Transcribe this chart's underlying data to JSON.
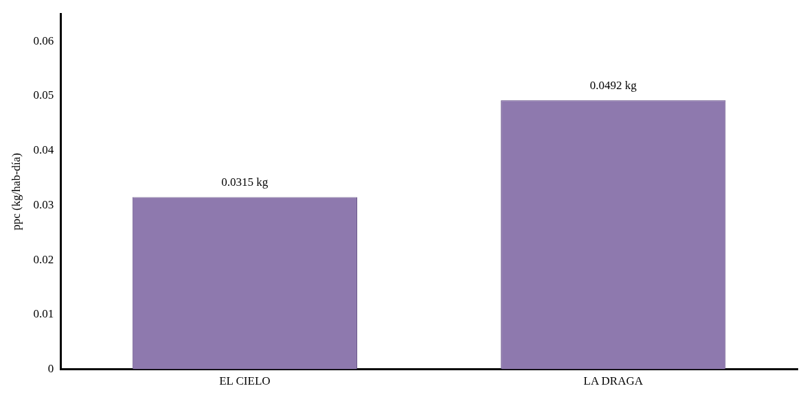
{
  "chart_data": {
    "type": "bar",
    "ylabel": "ppc (kg/hab-día)",
    "categories": [
      "EL CIELO",
      "LA DRAGA"
    ],
    "values": [
      0.0315,
      0.0492
    ],
    "value_labels": [
      "0.0315 kg",
      "0.0492 kg"
    ],
    "color": "#8e79ae",
    "ylim": [
      0,
      0.065
    ],
    "yticks": [
      0,
      0.01,
      0.02,
      0.03,
      0.04,
      0.05,
      0.06
    ],
    "grid": false,
    "legend": false
  }
}
